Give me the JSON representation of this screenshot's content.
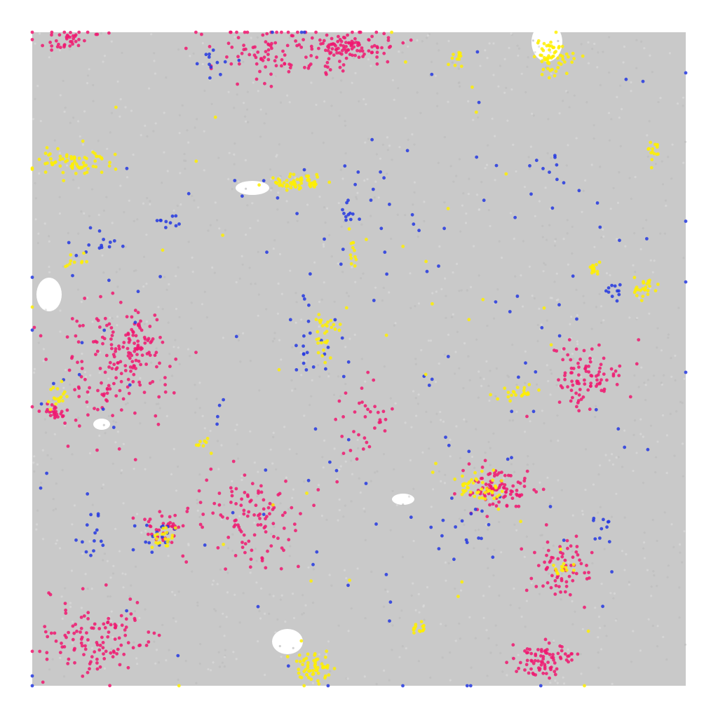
{
  "chart_data": {
    "type": "scatter",
    "title": "",
    "xlabel": "",
    "ylabel": "",
    "grid": false,
    "legend": "none",
    "axes_shown": false,
    "background_color": "#c9c9c9",
    "series": [
      {
        "color": "#f01870",
        "clusters": [
          {
            "x": 0.06,
            "y": 0.01,
            "rx": 0.04,
            "ry": 0.015,
            "n": 40
          },
          {
            "x": 0.38,
            "y": 0.03,
            "rx": 0.11,
            "ry": 0.04,
            "n": 110
          },
          {
            "x": 0.49,
            "y": 0.02,
            "rx": 0.06,
            "ry": 0.02,
            "n": 90
          },
          {
            "x": 0.12,
            "y": 0.51,
            "rx": 0.08,
            "ry": 0.09,
            "n": 140
          },
          {
            "x": 0.16,
            "y": 0.48,
            "rx": 0.03,
            "ry": 0.04,
            "n": 60
          },
          {
            "x": 0.03,
            "y": 0.58,
            "rx": 0.015,
            "ry": 0.012,
            "n": 25
          },
          {
            "x": 0.33,
            "y": 0.74,
            "rx": 0.07,
            "ry": 0.07,
            "n": 110
          },
          {
            "x": 0.2,
            "y": 0.76,
            "rx": 0.025,
            "ry": 0.02,
            "n": 35
          },
          {
            "x": 0.1,
            "y": 0.93,
            "rx": 0.08,
            "ry": 0.06,
            "n": 120
          },
          {
            "x": 0.85,
            "y": 0.53,
            "rx": 0.05,
            "ry": 0.05,
            "n": 90
          },
          {
            "x": 0.71,
            "y": 0.7,
            "rx": 0.05,
            "ry": 0.03,
            "n": 90
          },
          {
            "x": 0.81,
            "y": 0.82,
            "rx": 0.04,
            "ry": 0.04,
            "n": 70
          },
          {
            "x": 0.78,
            "y": 0.96,
            "rx": 0.04,
            "ry": 0.025,
            "n": 80
          },
          {
            "x": 0.51,
            "y": 0.59,
            "rx": 0.04,
            "ry": 0.05,
            "n": 35
          }
        ]
      },
      {
        "color": "#2438e0",
        "clusters": [
          {
            "x": 0.27,
            "y": 0.05,
            "rx": 0.03,
            "ry": 0.03,
            "n": 12
          },
          {
            "x": 0.1,
            "y": 0.32,
            "rx": 0.04,
            "ry": 0.03,
            "n": 14
          },
          {
            "x": 0.21,
            "y": 0.29,
            "rx": 0.02,
            "ry": 0.015,
            "n": 10
          },
          {
            "x": 0.48,
            "y": 0.27,
            "rx": 0.015,
            "ry": 0.04,
            "n": 14
          },
          {
            "x": 0.42,
            "y": 0.49,
            "rx": 0.03,
            "ry": 0.04,
            "n": 14
          },
          {
            "x": 0.19,
            "y": 0.77,
            "rx": 0.03,
            "ry": 0.03,
            "n": 16
          },
          {
            "x": 0.09,
            "y": 0.77,
            "rx": 0.03,
            "ry": 0.05,
            "n": 14
          },
          {
            "x": 0.66,
            "y": 0.76,
            "rx": 0.04,
            "ry": 0.04,
            "n": 16
          },
          {
            "x": 0.87,
            "y": 0.76,
            "rx": 0.03,
            "ry": 0.03,
            "n": 10
          },
          {
            "x": 0.89,
            "y": 0.39,
            "rx": 0.02,
            "ry": 0.02,
            "n": 10
          },
          {
            "x": 0.79,
            "y": 0.21,
            "rx": 0.03,
            "ry": 0.03,
            "n": 10
          },
          {
            "x": 0.5,
            "y": 0.5,
            "rx": 0.47,
            "ry": 0.47,
            "n": 150
          }
        ]
      },
      {
        "color": "#fff000",
        "clusters": [
          {
            "x": 0.8,
            "y": 0.04,
            "rx": 0.03,
            "ry": 0.025,
            "n": 60
          },
          {
            "x": 0.65,
            "y": 0.04,
            "rx": 0.012,
            "ry": 0.012,
            "n": 12
          },
          {
            "x": 0.06,
            "y": 0.2,
            "rx": 0.05,
            "ry": 0.02,
            "n": 70
          },
          {
            "x": 0.4,
            "y": 0.23,
            "rx": 0.04,
            "ry": 0.012,
            "n": 60
          },
          {
            "x": 0.45,
            "y": 0.46,
            "rx": 0.015,
            "ry": 0.04,
            "n": 30
          },
          {
            "x": 0.49,
            "y": 0.34,
            "rx": 0.008,
            "ry": 0.03,
            "n": 12
          },
          {
            "x": 0.04,
            "y": 0.56,
            "rx": 0.015,
            "ry": 0.015,
            "n": 18
          },
          {
            "x": 0.2,
            "y": 0.77,
            "rx": 0.015,
            "ry": 0.015,
            "n": 20
          },
          {
            "x": 0.43,
            "y": 0.97,
            "rx": 0.025,
            "ry": 0.03,
            "n": 60
          },
          {
            "x": 0.7,
            "y": 0.7,
            "rx": 0.03,
            "ry": 0.02,
            "n": 35
          },
          {
            "x": 0.66,
            "y": 0.69,
            "rx": 0.012,
            "ry": 0.012,
            "n": 12
          },
          {
            "x": 0.94,
            "y": 0.39,
            "rx": 0.02,
            "ry": 0.015,
            "n": 25
          },
          {
            "x": 0.86,
            "y": 0.36,
            "rx": 0.01,
            "ry": 0.012,
            "n": 14
          },
          {
            "x": 0.95,
            "y": 0.18,
            "rx": 0.01,
            "ry": 0.015,
            "n": 14
          },
          {
            "x": 0.74,
            "y": 0.55,
            "rx": 0.04,
            "ry": 0.01,
            "n": 22
          },
          {
            "x": 0.59,
            "y": 0.91,
            "rx": 0.015,
            "ry": 0.01,
            "n": 14
          },
          {
            "x": 0.81,
            "y": 0.82,
            "rx": 0.015,
            "ry": 0.015,
            "n": 14
          },
          {
            "x": 0.26,
            "y": 0.63,
            "rx": 0.01,
            "ry": 0.01,
            "n": 8
          },
          {
            "x": 0.07,
            "y": 0.35,
            "rx": 0.02,
            "ry": 0.012,
            "n": 10
          },
          {
            "x": 0.5,
            "y": 0.5,
            "rx": 0.47,
            "ry": 0.47,
            "n": 40
          }
        ]
      }
    ]
  }
}
